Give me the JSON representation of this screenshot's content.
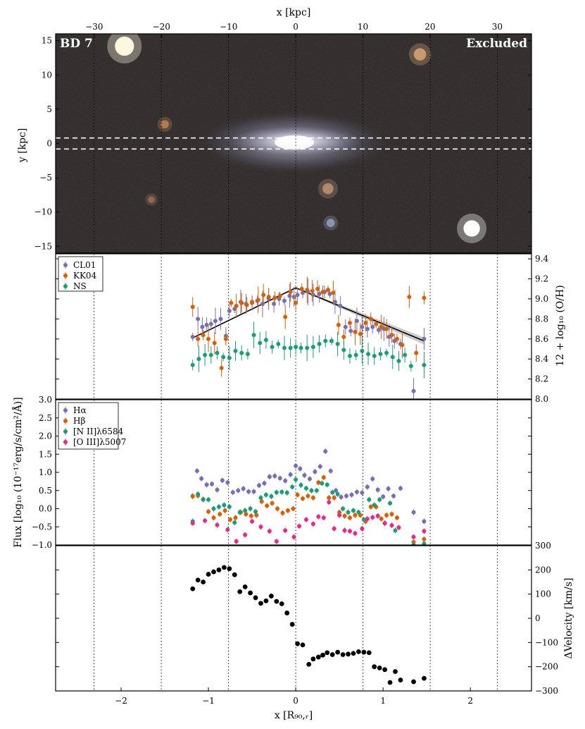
{
  "chart_data": [
    {
      "type": "image",
      "galaxy": "BD 7",
      "status": "Excluded",
      "top_xlabel": "x [kpc]",
      "ylabel": "y [kpc]",
      "top_xticks": [
        -30,
        -20,
        -10,
        0,
        10,
        20,
        30
      ],
      "yticks": [
        -15,
        -10,
        -5,
        0,
        5,
        10,
        15
      ],
      "kpc_per_R90": 13.0,
      "ylim": [
        -16,
        16
      ],
      "slit_half_width_kpc": 0.8,
      "background": "#2a2624",
      "stars": [
        {
          "x": -25.5,
          "y": 14.2,
          "r": 1.4,
          "color": "#fff6e0"
        },
        {
          "x": 18.5,
          "y": 13.0,
          "r": 0.9,
          "color": "#c89a70"
        },
        {
          "x": -19.5,
          "y": 2.8,
          "r": 0.6,
          "color": "#b07a50"
        },
        {
          "x": 4.8,
          "y": -6.6,
          "r": 0.8,
          "color": "#b08870"
        },
        {
          "x": -21.5,
          "y": -8.2,
          "r": 0.5,
          "color": "#8a6a55"
        },
        {
          "x": 5.2,
          "y": -11.6,
          "r": 0.6,
          "color": "#8a93b0"
        },
        {
          "x": 26.2,
          "y": -12.4,
          "r": 1.2,
          "color": "#ffffff"
        }
      ]
    },
    {
      "type": "scatter",
      "ylabel": "12 + log₁₀ (O/H)",
      "ylim": [
        8.0,
        9.45
      ],
      "yticks": [
        8.0,
        8.2,
        8.4,
        8.6,
        8.8,
        9.0,
        9.2,
        9.4
      ],
      "legend": "top-left",
      "series": [
        {
          "name": "CL01",
          "color": "#7570b3",
          "x": [
            -1.18,
            -1.12,
            -1.07,
            -1.02,
            -0.97,
            -0.92,
            -0.86,
            -0.8,
            -0.76,
            -0.7,
            -0.63,
            -0.57,
            -0.5,
            -0.44,
            -0.38,
            -0.31,
            -0.25,
            -0.19,
            -0.13,
            -0.07,
            -0.02,
            0.02,
            0.08,
            0.14,
            0.2,
            0.27,
            0.33,
            0.39,
            0.45,
            0.51,
            0.57,
            0.63,
            0.7,
            0.76,
            0.82,
            0.88,
            0.95,
            1.01,
            1.07,
            1.13,
            1.2,
            1.35,
            1.47
          ],
          "y": [
            8.62,
            8.8,
            8.72,
            8.74,
            8.75,
            8.78,
            8.8,
            8.63,
            8.88,
            8.9,
            8.97,
            8.95,
            8.96,
            8.98,
            8.95,
            9.0,
            8.95,
            9.0,
            8.98,
            9.03,
            9.02,
            9.04,
            9.06,
            9.07,
            9.04,
            9.05,
            9.07,
            9.05,
            8.97,
            8.93,
            8.72,
            8.68,
            8.78,
            8.72,
            8.7,
            8.72,
            8.69,
            8.7,
            8.62,
            8.58,
            8.55,
            8.08,
            8.6
          ]
        },
        {
          "name": "KK04",
          "color": "#d95f02",
          "x": [
            -1.18,
            -1.12,
            -1.06,
            -1.0,
            -0.93,
            -0.85,
            -0.8,
            -0.74,
            -0.68,
            -0.62,
            -0.56,
            -0.5,
            -0.43,
            -0.37,
            -0.31,
            -0.24,
            -0.18,
            -0.12,
            -0.06,
            0.0,
            0.07,
            0.13,
            0.19,
            0.25,
            0.31,
            0.37,
            0.43,
            0.49,
            0.55,
            0.62,
            0.68,
            0.74,
            0.8,
            0.86,
            0.92,
            0.98,
            1.04,
            1.1,
            1.16,
            1.22,
            1.3,
            1.38,
            1.47
          ],
          "y": [
            8.92,
            8.6,
            8.64,
            8.6,
            8.56,
            8.31,
            8.6,
            8.96,
            8.93,
            8.96,
            8.94,
            8.97,
            8.99,
            9.04,
            9.02,
            9.01,
            9.03,
            8.82,
            9.07,
            8.96,
            9.1,
            9.09,
            9.08,
            9.1,
            9.07,
            9.09,
            9.06,
            8.74,
            8.62,
            8.76,
            8.67,
            8.65,
            8.76,
            8.8,
            8.75,
            8.72,
            8.7,
            8.64,
            8.6,
            8.54,
            9.02,
            8.46,
            9.01
          ]
        },
        {
          "name": "NS",
          "color": "#1b9e77",
          "x": [
            -1.18,
            -1.11,
            -1.04,
            -0.97,
            -0.9,
            -0.83,
            -0.76,
            -0.69,
            -0.62,
            -0.55,
            -0.48,
            -0.41,
            -0.34,
            -0.27,
            -0.2,
            -0.13,
            -0.06,
            0.0,
            0.06,
            0.13,
            0.2,
            0.27,
            0.34,
            0.41,
            0.48,
            0.55,
            0.62,
            0.69,
            0.76,
            0.83,
            0.9,
            0.97,
            1.04,
            1.11,
            1.18,
            1.25,
            1.32,
            1.47
          ],
          "y": [
            8.34,
            8.4,
            8.44,
            8.44,
            8.46,
            8.42,
            8.41,
            8.48,
            8.46,
            8.45,
            8.64,
            8.56,
            8.59,
            8.52,
            8.55,
            8.51,
            8.51,
            8.52,
            8.51,
            8.51,
            8.52,
            8.55,
            8.58,
            8.58,
            8.55,
            8.49,
            8.43,
            8.44,
            8.48,
            8.45,
            8.43,
            8.45,
            8.46,
            8.42,
            8.38,
            8.44,
            8.33,
            8.34
          ]
        }
      ],
      "fit_line": {
        "x": [
          -1.18,
          0.0,
          1.47
        ],
        "y": [
          8.61,
          9.11,
          8.58
        ],
        "color": "#000000"
      }
    },
    {
      "type": "scatter",
      "ylabel": "Flux [log₁₀ (10⁻¹⁷erg/s/cm²/Å)]",
      "ylim": [
        -1.0,
        3.0
      ],
      "yticks": [
        -1.0,
        -0.5,
        0.0,
        0.5,
        1.0,
        1.5,
        2.0,
        2.5,
        3.0
      ],
      "legend": "top-left",
      "series": [
        {
          "name": "Hα",
          "color": "#7570b3",
          "x": [
            -1.18,
            -1.13,
            -1.08,
            -1.02,
            -0.96,
            -0.9,
            -0.84,
            -0.78,
            -0.72,
            -0.66,
            -0.6,
            -0.54,
            -0.48,
            -0.42,
            -0.36,
            -0.3,
            -0.24,
            -0.18,
            -0.12,
            -0.06,
            0.0,
            0.05,
            0.1,
            0.16,
            0.22,
            0.28,
            0.34,
            0.4,
            0.46,
            0.52,
            0.58,
            0.64,
            0.7,
            0.76,
            0.82,
            0.88,
            0.94,
            1.0,
            1.06,
            1.12,
            1.2,
            1.35,
            1.47
          ],
          "y": [
            0.35,
            1.04,
            0.83,
            0.66,
            0.68,
            0.52,
            0.78,
            0.72,
            0.45,
            0.5,
            0.55,
            0.47,
            0.47,
            0.64,
            0.7,
            0.88,
            0.9,
            0.84,
            0.77,
            0.94,
            1.18,
            1.1,
            0.92,
            0.82,
            1.02,
            1.16,
            1.58,
            1.04,
            0.5,
            0.32,
            0.35,
            0.38,
            0.46,
            0.44,
            0.6,
            0.82,
            0.52,
            0.33,
            0.55,
            0.35,
            0.56,
            -0.1,
            -0.35
          ]
        },
        {
          "name": "Hβ",
          "color": "#d95f02",
          "x": [
            -1.18,
            -1.12,
            -1.06,
            -1.0,
            -0.94,
            -0.87,
            -0.81,
            -0.75,
            -0.69,
            -0.63,
            -0.57,
            -0.51,
            -0.45,
            -0.39,
            -0.33,
            -0.27,
            -0.21,
            -0.15,
            -0.09,
            -0.03,
            0.02,
            0.08,
            0.14,
            0.2,
            0.26,
            0.32,
            0.38,
            0.44,
            0.5,
            0.56,
            0.62,
            0.68,
            0.74,
            0.8,
            0.86,
            0.92,
            0.98,
            1.04,
            1.1,
            1.16,
            1.35,
            1.47
          ],
          "y": [
            0.34,
            0.36,
            0.26,
            -0.08,
            -0.25,
            -0.15,
            -0.05,
            -0.3,
            -0.25,
            -0.1,
            -0.15,
            -0.2,
            -0.18,
            0.2,
            0.08,
            0.15,
            0.0,
            -0.12,
            -0.05,
            0.0,
            0.38,
            0.28,
            0.35,
            0.3,
            0.72,
            0.86,
            0.3,
            0.3,
            -0.1,
            -0.2,
            -0.25,
            -0.18,
            -0.18,
            -0.35,
            0.05,
            0.05,
            -0.28,
            -0.18,
            -0.15,
            -0.25,
            -0.92,
            -0.84
          ]
        },
        {
          "name": "[N II]λ6584",
          "color": "#1b9e77",
          "x": [
            -1.18,
            -1.12,
            -1.06,
            -1.0,
            -0.94,
            -0.88,
            -0.82,
            -0.76,
            -0.7,
            -0.64,
            -0.58,
            -0.52,
            -0.46,
            -0.4,
            -0.34,
            -0.28,
            -0.22,
            -0.16,
            -0.1,
            -0.04,
            0.0,
            0.06,
            0.12,
            0.18,
            0.24,
            0.3,
            0.36,
            0.42,
            0.48,
            0.54,
            0.6,
            0.66,
            0.72,
            0.78,
            0.84,
            0.9,
            0.96,
            1.02,
            1.08,
            1.14,
            1.35,
            1.47
          ],
          "y": [
            -0.35,
            0.4,
            0.25,
            0.25,
            0.0,
            0.05,
            0.1,
            0.05,
            -0.38,
            -0.1,
            -0.05,
            0.0,
            -0.08,
            0.3,
            0.38,
            0.34,
            0.45,
            0.46,
            0.44,
            0.6,
            0.8,
            0.65,
            0.56,
            0.5,
            0.5,
            0.7,
            0.66,
            0.45,
            0.4,
            0.0,
            -0.1,
            -0.05,
            -0.1,
            -0.3,
            0.25,
            0.1,
            0.25,
            -0.4,
            0.15,
            -0.6,
            -1.0,
            -0.96
          ]
        },
        {
          "name": "[O III]λ5007",
          "color": "#e7298a",
          "x": [
            -1.18,
            -1.04,
            -0.9,
            -0.78,
            -0.68,
            -0.58,
            -0.5,
            -0.4,
            -0.3,
            -0.22,
            -0.12,
            -0.02,
            0.04,
            0.12,
            0.2,
            0.26,
            0.32,
            0.38,
            0.44,
            0.5,
            0.56,
            0.62,
            0.68,
            0.76,
            0.82,
            0.88,
            0.94,
            1.02,
            1.1,
            1.18,
            1.35,
            1.47
          ],
          "y": [
            -0.4,
            -0.33,
            -0.45,
            -0.58,
            -0.9,
            -0.72,
            -0.35,
            -0.5,
            -0.62,
            -0.9,
            -0.6,
            -0.78,
            -0.48,
            -0.3,
            -0.42,
            -0.22,
            -0.25,
            0.18,
            -0.55,
            -0.18,
            -0.6,
            -0.62,
            -0.68,
            -0.55,
            -0.28,
            -0.24,
            -0.2,
            -0.4,
            -0.46,
            -0.52,
            -0.78,
            -0.62
          ]
        }
      ]
    },
    {
      "type": "scatter",
      "xlabel": "x [R₉₀,ᵣ]",
      "ylabel": "ΔVelocity [km/s]",
      "xlim": [
        -2.75,
        2.7
      ],
      "xticks": [
        -2,
        -1,
        0,
        1,
        2
      ],
      "ylim": [
        -300,
        300
      ],
      "yticks": [
        -300,
        -200,
        -100,
        0,
        100,
        200,
        300
      ],
      "vertical_guides": [
        -2.31,
        -1.54,
        -0.77,
        0.0,
        0.77,
        1.54,
        2.31
      ],
      "series": [
        {
          "name": "",
          "color": "#000000",
          "x": [
            -1.18,
            -1.12,
            -1.06,
            -1.0,
            -0.94,
            -0.88,
            -0.82,
            -0.76,
            -0.7,
            -0.64,
            -0.58,
            -0.52,
            -0.46,
            -0.4,
            -0.34,
            -0.28,
            -0.22,
            -0.16,
            -0.1,
            -0.04,
            0.02,
            0.08,
            0.15,
            0.2,
            0.26,
            0.31,
            0.36,
            0.42,
            0.48,
            0.54,
            0.6,
            0.66,
            0.72,
            0.78,
            0.84,
            0.9,
            0.96,
            1.02,
            1.08,
            1.14,
            1.2,
            1.35,
            1.47
          ],
          "y": [
            122,
            158,
            150,
            182,
            192,
            200,
            210,
            205,
            180,
            110,
            130,
            105,
            85,
            62,
            72,
            92,
            70,
            60,
            22,
            -25,
            -105,
            -110,
            -190,
            -168,
            -160,
            -152,
            -142,
            -150,
            -140,
            -150,
            -148,
            -145,
            -138,
            -140,
            -142,
            -200,
            -205,
            -212,
            -265,
            -220,
            -255,
            -262,
            -248
          ]
        }
      ]
    }
  ]
}
